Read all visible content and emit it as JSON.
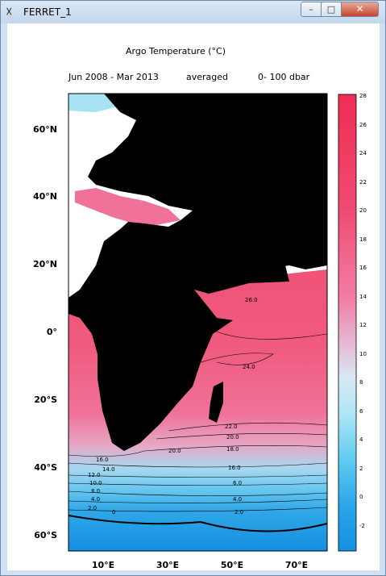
{
  "window": {
    "title": "FERRET_1",
    "minimize": "–",
    "maximize": "□",
    "close": "✕"
  },
  "plot": {
    "title": "Argo Temperature (°C)",
    "time_range": "Jun 2008 - Mar 2013",
    "averaged": "averaged",
    "depth_range": "0- 100 dbar",
    "y_ticks": [
      "60°N",
      "40°N",
      "20°N",
      "0°",
      "20°S",
      "40°S",
      "60°S"
    ],
    "x_ticks": [
      "10°E",
      "30°E",
      "50°E",
      "70°E"
    ],
    "colorbar_ticks": [
      "28",
      "26",
      "24",
      "22",
      "20",
      "18",
      "16",
      "14",
      "12",
      "10",
      "8",
      "6",
      "4",
      "2",
      "0",
      "-2"
    ],
    "contour_labels": [
      "26.0",
      "24.0",
      "22.0",
      "20.0",
      "18.0",
      "16.0",
      "14.0",
      "20.0",
      "16.0",
      "12.0",
      "10.0",
      "8.0",
      "6.0",
      "4.0",
      "4.0",
      "2.0",
      "2.0",
      "0"
    ]
  }
}
